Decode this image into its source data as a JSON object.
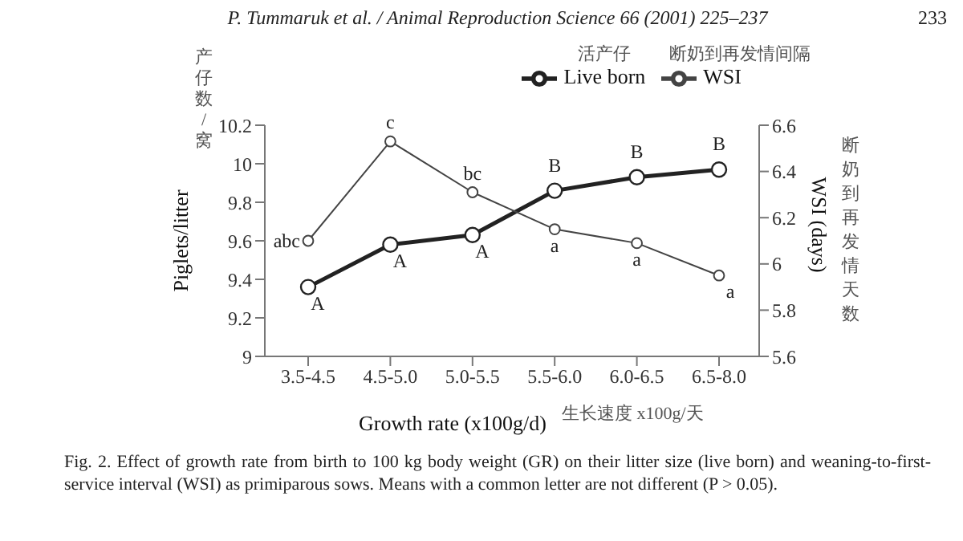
{
  "chart_data": {
    "type": "line",
    "xlabel": "Growth rate (x100g/d)",
    "ylabel": "Piglets/litter",
    "y2label": "WSI (days)",
    "categories": [
      "3.5-4.5",
      "4.5-5.0",
      "5.0-5.5",
      "5.5-6.0",
      "6.0-6.5",
      "6.5-8.0"
    ],
    "series": [
      {
        "name": "Live born",
        "color": "#222222",
        "values": [
          9.36,
          9.58,
          9.63,
          9.86,
          9.93,
          9.97
        ],
        "value_labels": [
          "A",
          "A",
          "A",
          "B",
          "B",
          "B"
        ]
      },
      {
        "name": "WSI",
        "color": "#444444",
        "axis": "y2",
        "values": [
          6.1,
          6.53,
          6.31,
          6.15,
          6.09,
          5.95
        ],
        "value_labels": [
          "abc",
          "c",
          "bc",
          "a",
          "a",
          "a"
        ]
      }
    ],
    "ylim": [
      9,
      10.2
    ],
    "yticks": [
      9,
      9.2,
      9.4,
      9.6,
      9.8,
      10,
      10.2
    ],
    "y2lim": [
      5.6,
      6.6
    ],
    "y2ticks": [
      5.6,
      5.8,
      6,
      6.2,
      6.4,
      6.6
    ],
    "grid": false,
    "legend": "top right",
    "marker": "circle",
    "line_style": "solid",
    "annotations": [
      "P. Tummaruk et al. / Animal Reproduction Science 66 (2001) 225–237",
      "233",
      "产仔数/窝",
      "活产仔",
      "断奶到再发情间隔",
      "断奶到再发情天数",
      "生长速度 x100g/天",
      "Fig. 2. Effect of growth rate from birth to 100 kg body weight (GR) on their litter size (live born) and weaning-to-first-service interval (WSI) as primiparous sows. Means with a common letter are not different (P > 0.05)."
    ]
  }
}
